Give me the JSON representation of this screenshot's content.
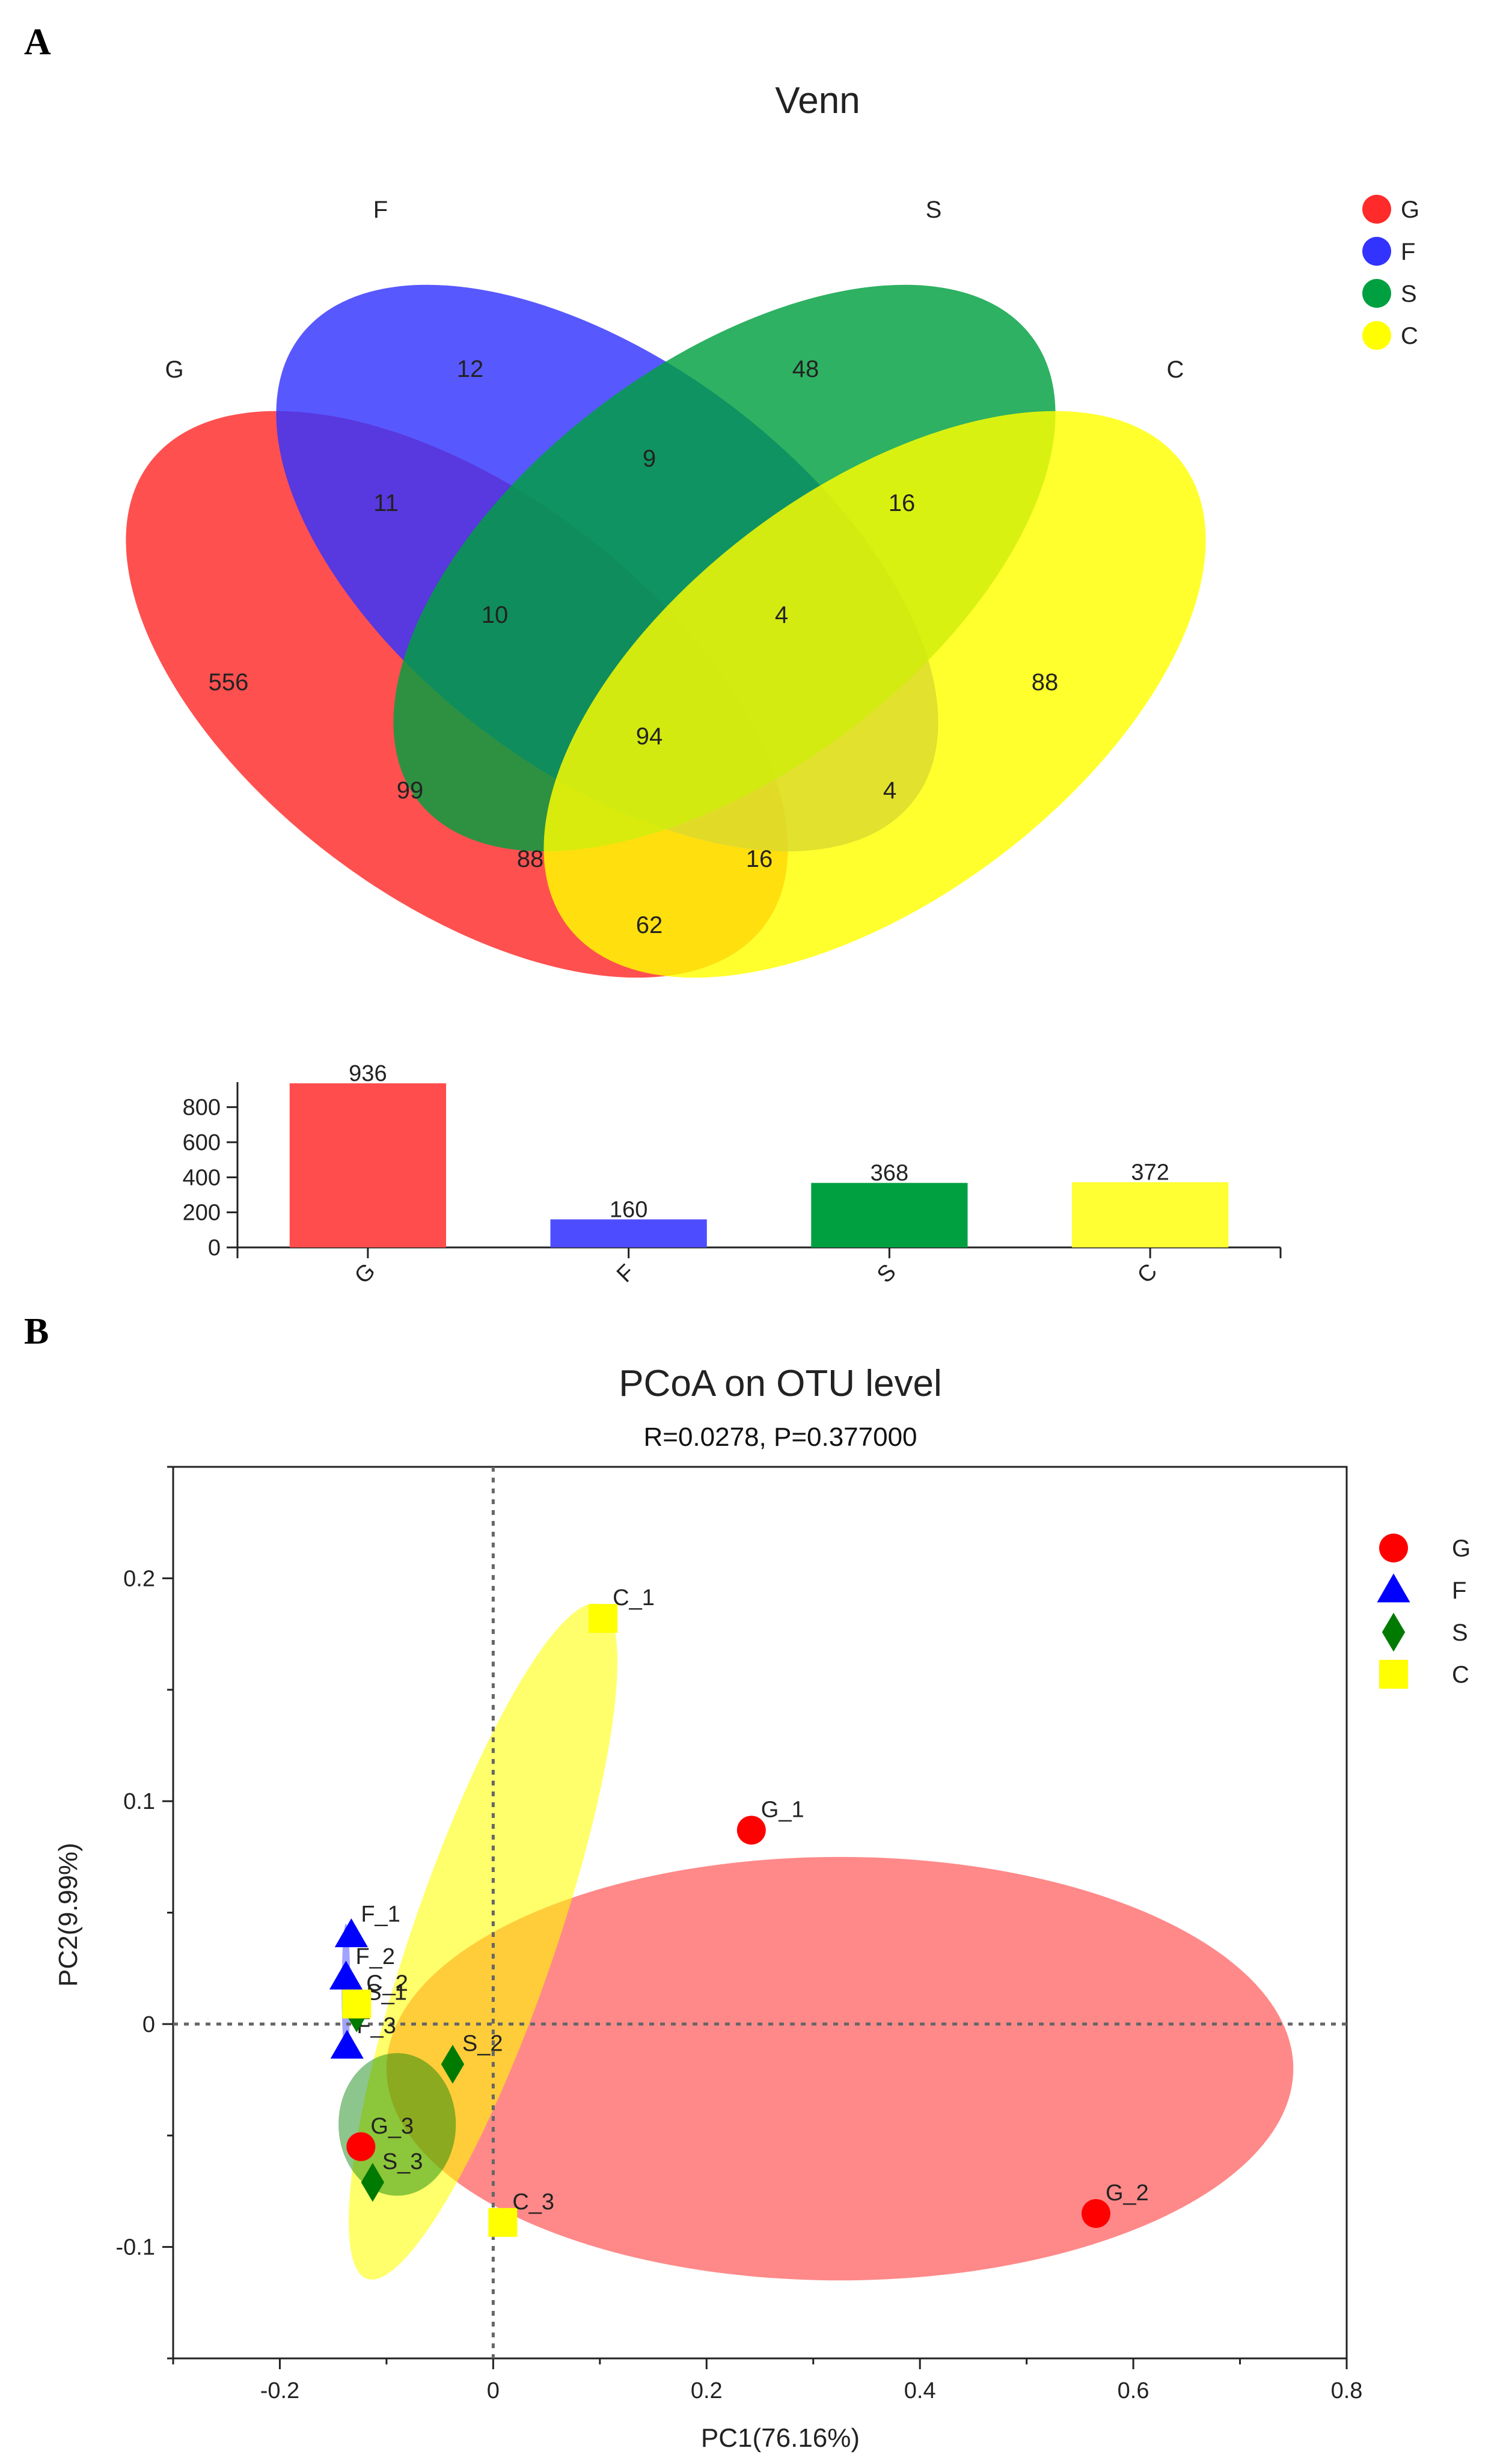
{
  "panels": {
    "a_label": "A",
    "b_label": "B"
  },
  "chart_data": [
    {
      "type": "venn",
      "title": "Venn",
      "sets": [
        {
          "name": "G",
          "color": "#ff2a2a"
        },
        {
          "name": "F",
          "color": "#3333ff"
        },
        {
          "name": "S",
          "color": "#00a040"
        },
        {
          "name": "C",
          "color": "#ffff00"
        }
      ],
      "regions": [
        {
          "sets": "G",
          "value": 556
        },
        {
          "sets": "F",
          "value": 12
        },
        {
          "sets": "S",
          "value": 48
        },
        {
          "sets": "C",
          "value": 88
        },
        {
          "sets": "G&F",
          "value": 11
        },
        {
          "sets": "F&S",
          "value": 9
        },
        {
          "sets": "S&C",
          "value": 16
        },
        {
          "sets": "G&F&S",
          "value": 10
        },
        {
          "sets": "F&S&C",
          "value": 4
        },
        {
          "sets": "G&F&S&C",
          "value": 94
        },
        {
          "sets": "G&S",
          "value": 99
        },
        {
          "sets": "F&C",
          "value": 4
        },
        {
          "sets": "G&S&C",
          "value": 88
        },
        {
          "sets": "G&F&C",
          "value": 16
        },
        {
          "sets": "G&C",
          "value": 62
        }
      ]
    },
    {
      "type": "bar",
      "categories": [
        "G",
        "F",
        "S",
        "C"
      ],
      "values": [
        936,
        160,
        368,
        372
      ],
      "colors": [
        "#ff4d4d",
        "#4d4dff",
        "#00a040",
        "#ffff33"
      ],
      "ylim": [
        0,
        960
      ],
      "yticks": [
        0,
        200,
        400,
        600,
        800
      ]
    },
    {
      "type": "scatter",
      "title": "PCoA on OTU level",
      "subtitle": "R=0.0278, P=0.377000",
      "xlabel": "PC1(76.16%)",
      "ylabel": "PC2(9.99%)",
      "xlim": [
        -0.3,
        0.8
      ],
      "ylim": [
        -0.15,
        0.25
      ],
      "xticks": [
        -0.2,
        0,
        0.2,
        0.4,
        0.6,
        0.8
      ],
      "xtick_labels": [
        "-0.2",
        "0",
        "0.2",
        "0.4",
        "0.6",
        "0.8"
      ],
      "yticks": [
        -0.1,
        0,
        0.1,
        0.2
      ],
      "ytick_labels": [
        "-0.1",
        "0",
        "0.1",
        "0.2"
      ],
      "groups": [
        {
          "name": "G",
          "marker": "circle",
          "color": "#ff0000",
          "ellipse_color": "#ff4040",
          "ellipse": {
            "cx": 0.325,
            "cy": -0.02,
            "rx": 0.425,
            "ry": 0.095,
            "angle": 0
          }
        },
        {
          "name": "F",
          "marker": "triangle",
          "color": "#0000ff",
          "ellipse_color": "#3333ff",
          "ellipse": {
            "cx": -0.138,
            "cy": 0.015,
            "rx": 0.004,
            "ry": 0.03,
            "angle": 0
          }
        },
        {
          "name": "S",
          "marker": "diamond",
          "color": "#007a00",
          "ellipse_color": "#008000",
          "ellipse": {
            "cx": -0.09,
            "cy": -0.045,
            "rx": 0.055,
            "ry": 0.032,
            "angle": 0
          }
        },
        {
          "name": "C",
          "marker": "square",
          "color": "#ffff00",
          "ellipse_color": "#ffff00",
          "ellipse": {
            "cx": -0.0095,
            "cy": 0.037,
            "rx": 0.067,
            "ry": 0.16,
            "angle": 19
          }
        }
      ],
      "points": [
        {
          "label": "G_1",
          "group": "G",
          "x": 0.242,
          "y": 0.087
        },
        {
          "label": "G_2",
          "group": "G",
          "x": 0.565,
          "y": -0.085
        },
        {
          "label": "G_3",
          "group": "G",
          "x": -0.124,
          "y": -0.055
        },
        {
          "label": "F_1",
          "group": "F",
          "x": -0.133,
          "y": 0.04
        },
        {
          "label": "F_2",
          "group": "F",
          "x": -0.138,
          "y": 0.021
        },
        {
          "label": "F_3",
          "group": "F",
          "x": -0.137,
          "y": -0.01
        },
        {
          "label": "S_1",
          "group": "S",
          "x": -0.128,
          "y": 0.005
        },
        {
          "label": "S_2",
          "group": "S",
          "x": -0.038,
          "y": -0.018
        },
        {
          "label": "S_3",
          "group": "S",
          "x": -0.113,
          "y": -0.071
        },
        {
          "label": "C_1",
          "group": "C",
          "x": 0.103,
          "y": 0.182
        },
        {
          "label": "C_2",
          "group": "C",
          "x": -0.128,
          "y": 0.009
        },
        {
          "label": "C_3",
          "group": "C",
          "x": 0.009,
          "y": -0.089
        }
      ]
    }
  ]
}
